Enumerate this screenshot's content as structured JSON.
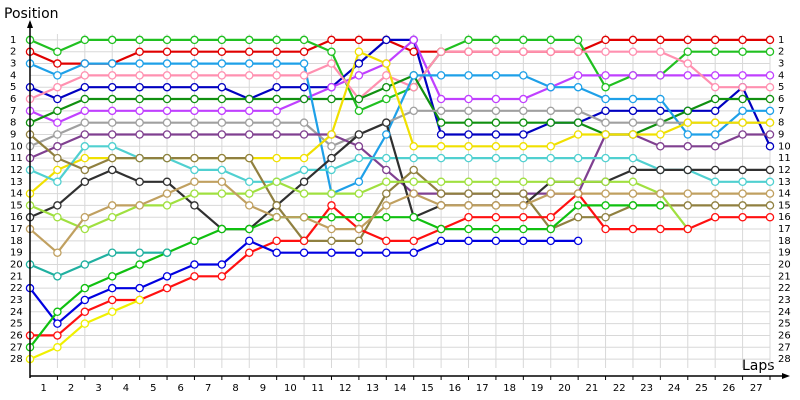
{
  "chart_data": {
    "type": "line",
    "title": "Position",
    "x_label": "Laps",
    "x": [
      0,
      1,
      2,
      3,
      4,
      5,
      6,
      7,
      8,
      9,
      10,
      11,
      12,
      13,
      14,
      15,
      16,
      17,
      18,
      19,
      20,
      21,
      22,
      23,
      24,
      25,
      26,
      27
    ],
    "xlim": [
      0,
      27
    ],
    "ylim": [
      0.5,
      28.5
    ],
    "y_inverted": true,
    "grid": true,
    "xticks": [
      {
        "value": 0.5,
        "label": "1"
      },
      {
        "value": 1.5,
        "label": "2"
      },
      {
        "value": 2.5,
        "label": "3"
      },
      {
        "value": 3.5,
        "label": "4"
      },
      {
        "value": 4.5,
        "label": "5"
      },
      {
        "value": 5.5,
        "label": "6"
      },
      {
        "value": 6.5,
        "label": "7"
      },
      {
        "value": 7.5,
        "label": "8"
      },
      {
        "value": 8.5,
        "label": "9"
      },
      {
        "value": 9.5,
        "label": "10"
      },
      {
        "value": 10.5,
        "label": "11"
      },
      {
        "value": 11.5,
        "label": "12"
      },
      {
        "value": 12.5,
        "label": "13"
      },
      {
        "value": 13.5,
        "label": "14"
      },
      {
        "value": 14.5,
        "label": "15"
      },
      {
        "value": 15.5,
        "label": "16"
      },
      {
        "value": 16.5,
        "label": "17"
      },
      {
        "value": 17.5,
        "label": "18"
      },
      {
        "value": 18.5,
        "label": "19"
      },
      {
        "value": 19.5,
        "label": "20"
      },
      {
        "value": 20.5,
        "label": "21"
      },
      {
        "value": 21.5,
        "label": "22"
      },
      {
        "value": 22.5,
        "label": "23"
      },
      {
        "value": 23.5,
        "label": "24"
      },
      {
        "value": 24.5,
        "label": "25"
      },
      {
        "value": 25.5,
        "label": "26"
      },
      {
        "value": 26.5,
        "label": "27"
      }
    ],
    "yticks": [
      1,
      2,
      3,
      4,
      5,
      6,
      7,
      8,
      9,
      10,
      11,
      12,
      13,
      14,
      15,
      16,
      17,
      18,
      19,
      20,
      21,
      22,
      23,
      24,
      25,
      26,
      27,
      28
    ],
    "series": [
      {
        "color": "#e00000",
        "values": [
          2,
          3,
          3,
          3,
          2,
          2,
          2,
          2,
          2,
          2,
          2,
          1,
          1,
          1,
          2,
          2,
          2,
          2,
          2,
          2,
          2,
          1,
          1,
          1,
          1,
          1,
          1,
          1
        ]
      },
      {
        "color": "#20c020",
        "values": [
          1,
          2,
          1,
          1,
          1,
          1,
          1,
          1,
          1,
          1,
          1,
          2,
          7,
          6,
          5,
          2,
          1,
          1,
          1,
          1,
          1,
          5,
          4,
          4,
          2,
          2,
          2,
          2
        ]
      },
      {
        "color": "#0000c0",
        "values": [
          5,
          6,
          5,
          5,
          5,
          5,
          5,
          5,
          6,
          5,
          5,
          5,
          3,
          1,
          1,
          9,
          9,
          9,
          9,
          8,
          8,
          7,
          7,
          7,
          7,
          7,
          5,
          10
        ]
      },
      {
        "color": "#c040ff",
        "values": [
          7,
          8,
          7,
          7,
          7,
          7,
          7,
          7,
          7,
          7,
          6,
          5,
          4,
          3,
          1,
          6,
          6,
          6,
          6,
          5,
          4,
          4,
          4,
          4,
          4,
          4,
          4,
          4
        ]
      },
      {
        "color": "#ff90b0",
        "values": [
          6,
          5,
          4,
          4,
          4,
          4,
          4,
          4,
          4,
          4,
          4,
          3,
          6,
          4,
          5,
          2,
          2,
          2,
          2,
          2,
          2,
          2,
          2,
          2,
          3,
          5,
          5,
          5
        ]
      },
      {
        "color": "#109010",
        "values": [
          8,
          7,
          6,
          6,
          6,
          6,
          6,
          6,
          6,
          6,
          6,
          6,
          6,
          5,
          4,
          8,
          8,
          8,
          8,
          8,
          8,
          9,
          9,
          8,
          7,
          6,
          6,
          6
        ]
      },
      {
        "color": "#1ea0e8",
        "values": [
          3,
          4,
          3,
          3,
          3,
          3,
          3,
          3,
          3,
          3,
          3,
          14,
          13,
          9,
          4,
          4,
          4,
          4,
          4,
          5,
          5,
          6,
          6,
          6,
          9,
          9,
          7,
          7
        ]
      },
      {
        "color": "#a0a0a0",
        "values": [
          10,
          9,
          8,
          8,
          8,
          8,
          8,
          8,
          8,
          8,
          8,
          10,
          9,
          8,
          7,
          7,
          7,
          7,
          7,
          7,
          7,
          8,
          8,
          8,
          8,
          8,
          8,
          8
        ]
      },
      {
        "color": "#804090",
        "values": [
          11,
          10,
          9,
          9,
          9,
          9,
          9,
          9,
          9,
          9,
          9,
          9,
          10,
          12,
          14,
          14,
          14,
          14,
          14,
          14,
          14,
          9,
          9,
          10,
          10,
          10,
          9,
          9
        ]
      },
      {
        "color": "#f0e000",
        "values": [
          14,
          12,
          11,
          11,
          11,
          11,
          11,
          11,
          11,
          11,
          11,
          9,
          2,
          3,
          10,
          10,
          10,
          10,
          10,
          10,
          9,
          9,
          9,
          9,
          8,
          8,
          8,
          8
        ]
      },
      {
        "color": "#50d0d0",
        "values": [
          12,
          13,
          10,
          10,
          11,
          11,
          12,
          12,
          13,
          13,
          12,
          12,
          11,
          11,
          11,
          11,
          11,
          11,
          11,
          11,
          11,
          11,
          11,
          12,
          12,
          13,
          13,
          13
        ]
      },
      {
        "color": "#303030",
        "values": [
          16,
          15,
          13,
          12,
          13,
          13,
          15,
          17,
          17,
          15,
          13,
          11,
          9,
          8,
          16,
          15,
          15,
          15,
          15,
          13,
          13,
          13,
          12,
          12,
          12,
          12,
          12,
          12
        ]
      },
      {
        "color": "#908040",
        "values": [
          9,
          11,
          12,
          11,
          11,
          11,
          11,
          11,
          11,
          15,
          18,
          18,
          18,
          14,
          12,
          14,
          14,
          14,
          14,
          17,
          16,
          16,
          15,
          15,
          15,
          15,
          15,
          15
        ]
      },
      {
        "color": "#a0e040",
        "values": [
          15,
          16,
          17,
          16,
          15,
          15,
          14,
          14,
          14,
          13,
          14,
          14,
          14,
          13,
          13,
          13,
          13,
          13,
          13,
          13,
          13,
          13,
          13,
          14,
          17,
          null,
          null,
          null
        ]
      },
      {
        "color": "#ff1010",
        "values": [
          26,
          26,
          24,
          23,
          23,
          22,
          21,
          21,
          19,
          18,
          18,
          15,
          17,
          18,
          18,
          17,
          16,
          16,
          16,
          16,
          14,
          17,
          17,
          17,
          17,
          16,
          16,
          16
        ]
      },
      {
        "color": "#0000e0",
        "values": [
          22,
          25,
          23,
          22,
          22,
          21,
          20,
          20,
          18,
          19,
          19,
          19,
          19,
          19,
          19,
          18,
          18,
          18,
          18,
          18,
          18,
          null,
          null,
          null,
          null,
          null,
          null,
          null
        ]
      },
      {
        "color": "#10c010",
        "values": [
          27,
          24,
          22,
          21,
          20,
          19,
          18,
          17,
          17,
          16,
          16,
          16,
          16,
          16,
          16,
          17,
          17,
          17,
          17,
          17,
          15,
          15,
          15,
          15,
          null,
          null,
          null,
          null
        ]
      },
      {
        "color": "#f0f000",
        "values": [
          28,
          27,
          25,
          24,
          23,
          null,
          null,
          null,
          null,
          null,
          null,
          null,
          null,
          null,
          null,
          null,
          null,
          null,
          null,
          null,
          null,
          null,
          null,
          null,
          null,
          null,
          null,
          null
        ]
      },
      {
        "color": "#20b0a0",
        "values": [
          20,
          21,
          20,
          19,
          19,
          19,
          null,
          null,
          null,
          null,
          null,
          null,
          null,
          null,
          null,
          null,
          null,
          null,
          null,
          null,
          null,
          null,
          null,
          null,
          null,
          null,
          null,
          null
        ]
      },
      {
        "color": "#c0a060",
        "values": [
          17,
          19,
          16,
          15,
          15,
          14,
          13,
          13,
          15,
          16,
          16,
          17,
          17,
          15,
          14,
          15,
          15,
          15,
          15,
          14,
          14,
          14,
          14,
          14,
          14,
          14,
          14,
          14
        ]
      }
    ]
  }
}
